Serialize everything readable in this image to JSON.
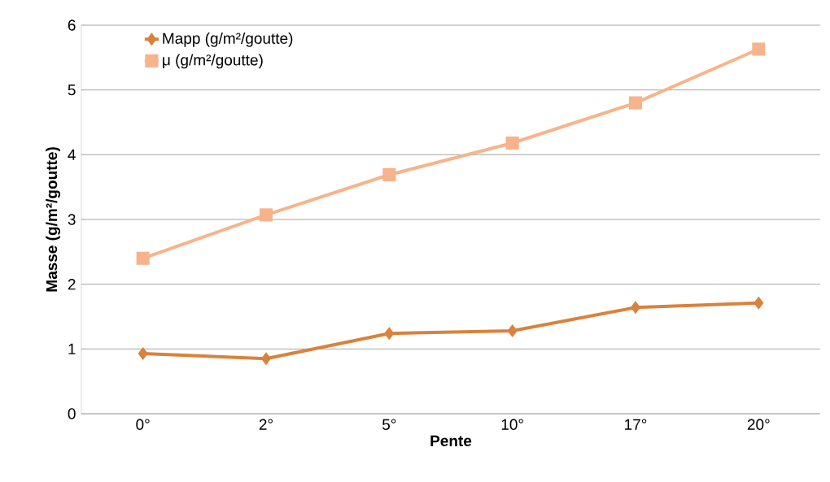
{
  "chart_data": {
    "type": "line",
    "xlabel": "Pente",
    "ylabel": "Masse (g/m²/goutte)",
    "categories": [
      "0°",
      "2°",
      "5°",
      "10°",
      "17°",
      "20°"
    ],
    "series": [
      {
        "name": "Mapp  (g/m²/goutte)",
        "color": "#d9823b",
        "marker": "diamond",
        "values": [
          0.93,
          0.85,
          1.24,
          1.28,
          1.64,
          1.71
        ]
      },
      {
        "name": "μ  (g/m²/goutte)",
        "color": "#f7b48c",
        "marker": "square",
        "values": [
          2.4,
          3.07,
          3.69,
          4.18,
          4.8,
          5.63
        ]
      }
    ],
    "ylim": [
      0,
      6
    ],
    "yticks": [
      0,
      1,
      2,
      3,
      4,
      5,
      6
    ],
    "grid": "y",
    "legend": "top left",
    "line_style": "solid"
  }
}
